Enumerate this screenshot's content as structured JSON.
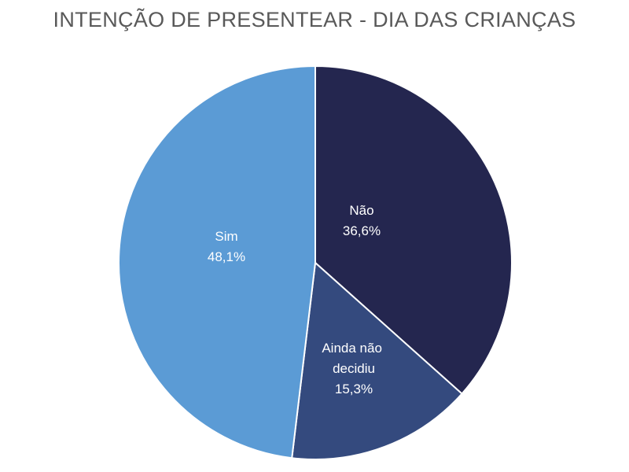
{
  "chart_data": {
    "type": "pie",
    "title": "INTENÇÃO DE PRESENTEAR - DIA DAS CRIANÇAS",
    "slices": [
      {
        "label": "Não",
        "value_label": "36,6%",
        "value": 36.6,
        "color": "#24264f"
      },
      {
        "label": "Ainda não decidiu",
        "value_label": "15,3%",
        "value": 15.3,
        "color": "#344a7e"
      },
      {
        "label": "Sim",
        "value_label": "48,1%",
        "value": 48.1,
        "color": "#5b9bd5"
      }
    ],
    "start_angle_deg": 0,
    "direction": "clockwise",
    "slice_border_color": "#ffffff"
  }
}
